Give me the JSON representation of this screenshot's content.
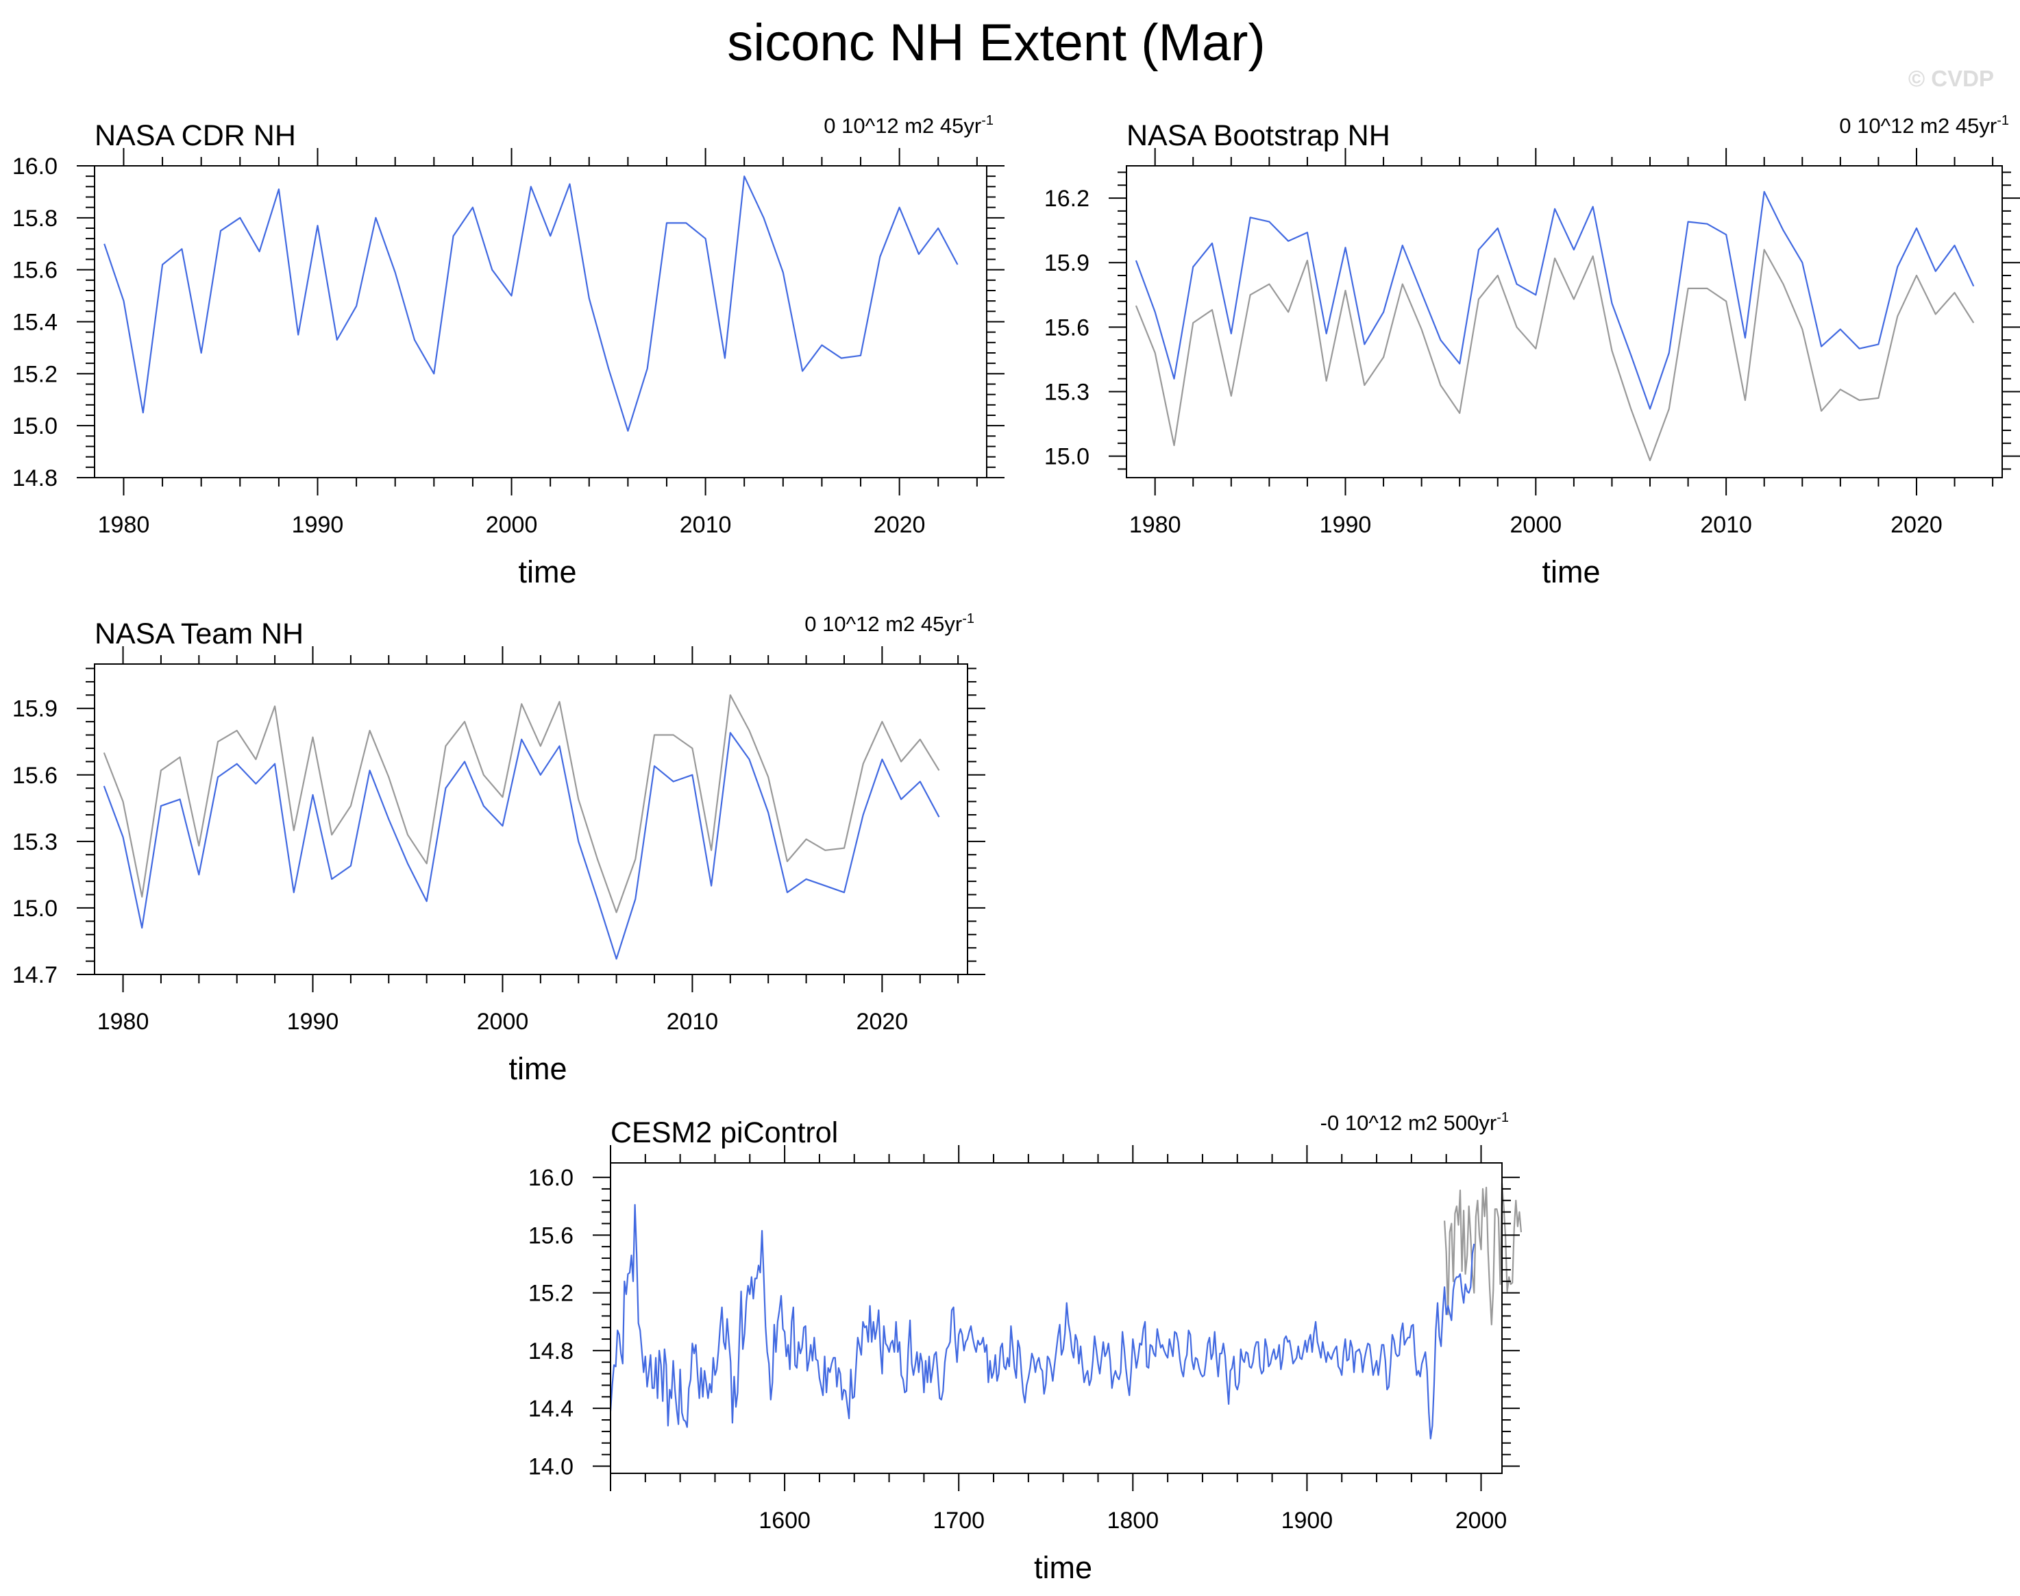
{
  "figure": {
    "title": "siconc NH Extent (Mar)",
    "watermark": "© CVDP"
  },
  "colors": {
    "main": "#4169e1",
    "obs_ref": "#999999",
    "axis": "#000000"
  },
  "chart_data": [
    {
      "type": "line",
      "title": "NASA CDR NH",
      "trend_label": "0 10^12 m2 45yr",
      "trend_sup": "-1",
      "xlabel": "time",
      "ylabel": "",
      "xlim": [
        1978.5,
        2024.5
      ],
      "ylim": [
        14.8,
        16.0
      ],
      "xticks": [
        1980,
        1990,
        2000,
        2010,
        2020
      ],
      "yticks": [
        14.8,
        15.0,
        15.2,
        15.4,
        15.6,
        15.8,
        16.0
      ],
      "ytick_labels": [
        "14.8",
        "15.0",
        "15.2",
        "15.4",
        "15.6",
        "15.8",
        "16.0"
      ],
      "x_start": 1979,
      "series": [
        {
          "role": "main",
          "values": [
            15.7,
            15.48,
            15.05,
            15.62,
            15.68,
            15.28,
            15.75,
            15.8,
            15.67,
            15.91,
            15.35,
            15.77,
            15.33,
            15.46,
            15.8,
            15.59,
            15.33,
            15.2,
            15.73,
            15.84,
            15.6,
            15.5,
            15.92,
            15.73,
            15.93,
            15.49,
            15.22,
            14.98,
            15.22,
            15.78,
            15.78,
            15.72,
            15.26,
            15.96,
            15.8,
            15.59,
            15.21,
            15.31,
            15.26,
            15.27,
            15.65,
            15.84,
            15.66,
            15.76,
            15.62
          ]
        }
      ]
    },
    {
      "type": "line",
      "title": "NASA Bootstrap NH",
      "trend_label": "0 10^12 m2 45yr",
      "trend_sup": "-1",
      "xlabel": "time",
      "ylabel": "",
      "xlim": [
        1978.5,
        2024.5
      ],
      "ylim": [
        14.9,
        16.35
      ],
      "xticks": [
        1980,
        1990,
        2000,
        2010,
        2020
      ],
      "yticks": [
        15.0,
        15.3,
        15.6,
        15.9,
        16.2
      ],
      "ytick_labels": [
        "15.0",
        "15.3",
        "15.6",
        "15.9",
        "16.2"
      ],
      "x_start": 1979,
      "series": [
        {
          "role": "reference",
          "values": [
            15.7,
            15.48,
            15.05,
            15.62,
            15.68,
            15.28,
            15.75,
            15.8,
            15.67,
            15.91,
            15.35,
            15.77,
            15.33,
            15.46,
            15.8,
            15.59,
            15.33,
            15.2,
            15.73,
            15.84,
            15.6,
            15.5,
            15.92,
            15.73,
            15.93,
            15.49,
            15.22,
            14.98,
            15.22,
            15.78,
            15.78,
            15.72,
            15.26,
            15.96,
            15.8,
            15.59,
            15.21,
            15.31,
            15.26,
            15.27,
            15.65,
            15.84,
            15.66,
            15.76,
            15.62
          ]
        },
        {
          "role": "main",
          "values": [
            15.91,
            15.67,
            15.36,
            15.88,
            15.99,
            15.57,
            16.11,
            16.09,
            16.0,
            16.04,
            15.57,
            15.97,
            15.52,
            15.67,
            15.98,
            15.76,
            15.54,
            15.43,
            15.96,
            16.06,
            15.8,
            15.75,
            16.15,
            15.96,
            16.16,
            15.71,
            15.47,
            15.22,
            15.48,
            16.09,
            16.08,
            16.03,
            15.55,
            16.23,
            16.05,
            15.9,
            15.51,
            15.59,
            15.5,
            15.52,
            15.88,
            16.06,
            15.86,
            15.98,
            15.79
          ]
        }
      ]
    },
    {
      "type": "line",
      "title": "NASA Team NH",
      "trend_label": "0 10^12 m2 45yr",
      "trend_sup": "-1",
      "xlabel": "time",
      "ylabel": "",
      "xlim": [
        1978.5,
        2024.5
      ],
      "ylim": [
        14.7,
        16.1
      ],
      "xticks": [
        1980,
        1990,
        2000,
        2010,
        2020
      ],
      "yticks": [
        14.7,
        15.0,
        15.3,
        15.6,
        15.9
      ],
      "ytick_labels": [
        "14.7",
        "15.0",
        "15.3",
        "15.6",
        "15.9"
      ],
      "x_start": 1979,
      "series": [
        {
          "role": "reference",
          "values": [
            15.7,
            15.48,
            15.05,
            15.62,
            15.68,
            15.28,
            15.75,
            15.8,
            15.67,
            15.91,
            15.35,
            15.77,
            15.33,
            15.46,
            15.8,
            15.59,
            15.33,
            15.2,
            15.73,
            15.84,
            15.6,
            15.5,
            15.92,
            15.73,
            15.93,
            15.49,
            15.22,
            14.98,
            15.22,
            15.78,
            15.78,
            15.72,
            15.26,
            15.96,
            15.8,
            15.59,
            15.21,
            15.31,
            15.26,
            15.27,
            15.65,
            15.84,
            15.66,
            15.76,
            15.62
          ]
        },
        {
          "role": "main",
          "values": [
            15.55,
            15.32,
            14.91,
            15.46,
            15.49,
            15.15,
            15.59,
            15.65,
            15.56,
            15.65,
            15.07,
            15.51,
            15.13,
            15.19,
            15.62,
            15.4,
            15.2,
            15.03,
            15.54,
            15.66,
            15.46,
            15.37,
            15.76,
            15.6,
            15.73,
            15.3,
            15.04,
            14.77,
            15.04,
            15.64,
            15.57,
            15.6,
            15.1,
            15.79,
            15.67,
            15.43,
            15.07,
            15.13,
            15.1,
            15.07,
            15.42,
            15.67,
            15.49,
            15.57,
            15.41
          ]
        }
      ]
    },
    {
      "type": "line",
      "title": "CESM2 piControl",
      "trend_label": "-0 10^12 m2 500yr",
      "trend_sup": "-1",
      "xlabel": "time",
      "ylabel": "",
      "xlim": [
        1500,
        2012
      ],
      "ylim": [
        13.95,
        16.1
      ],
      "xticks": [
        1600,
        1700,
        1800,
        1900,
        2000
      ],
      "yticks": [
        14.0,
        14.4,
        14.8,
        15.2,
        15.6,
        16.0
      ],
      "ytick_labels": [
        "14.0",
        "14.4",
        "14.8",
        "15.2",
        "15.6",
        "16.0"
      ],
      "x_start": 1500,
      "series": [
        {
          "role": "reference",
          "x_start": 1979,
          "values": [
            15.7,
            15.48,
            15.05,
            15.62,
            15.68,
            15.28,
            15.75,
            15.8,
            15.67,
            15.91,
            15.35,
            15.77,
            15.33,
            15.46,
            15.8,
            15.59,
            15.33,
            15.2,
            15.73,
            15.84,
            15.6,
            15.5,
            15.92,
            15.73,
            15.93,
            15.49,
            15.22,
            14.98,
            15.22,
            15.78,
            15.78,
            15.72,
            15.26,
            15.96,
            15.8,
            15.59,
            15.21,
            15.31,
            15.26,
            15.27,
            15.65,
            15.84,
            15.66,
            15.76,
            15.62
          ]
        },
        {
          "role": "main",
          "x_start": 1500,
          "values": [
            14.38,
            14.56,
            14.7,
            14.69,
            14.94,
            14.91,
            14.78,
            14.71,
            15.28,
            15.19,
            15.33,
            15.34,
            15.46,
            15.28,
            15.81,
            15.47,
            14.99,
            14.94,
            14.8,
            14.65,
            14.76,
            14.55,
            14.65,
            14.77,
            14.54,
            14.54,
            14.75,
            14.47,
            14.8,
            14.7,
            14.45,
            14.81,
            14.7,
            14.28,
            14.53,
            14.47,
            14.73,
            14.53,
            14.39,
            14.29,
            14.67,
            14.37,
            14.32,
            14.31,
            14.27,
            14.54,
            14.6,
            14.85,
            14.78,
            14.84,
            14.63,
            14.47,
            14.68,
            14.48,
            14.66,
            14.57,
            14.47,
            14.57,
            14.51,
            14.75,
            14.63,
            14.67,
            14.8,
            14.97,
            15.1,
            14.86,
            14.81,
            15.02,
            14.86,
            14.72,
            14.3,
            14.62,
            14.41,
            14.51,
            14.88,
            15.21,
            14.81,
            14.92,
            15.14,
            15.25,
            15.19,
            15.31,
            15.16,
            15.3,
            15.3,
            15.39,
            15.34,
            15.63,
            15.32,
            14.97,
            14.79,
            14.71,
            14.46,
            14.58,
            14.98,
            14.79,
            15.0,
            15.08,
            15.18,
            14.95,
            14.93,
            14.76,
            14.84,
            14.67,
            15.0,
            15.1,
            14.7,
            14.68,
            14.86,
            14.78,
            14.82,
            14.96,
            14.97,
            14.66,
            14.73,
            14.84,
            14.73,
            14.89,
            14.74,
            14.73,
            14.61,
            14.55,
            14.49,
            14.76,
            14.51,
            14.68,
            14.65,
            14.71,
            14.75,
            14.75,
            14.55,
            14.68,
            14.64,
            14.46,
            14.53,
            14.52,
            14.42,
            14.33,
            14.67,
            14.47,
            14.48,
            14.69,
            14.89,
            14.83,
            14.77,
            15.0,
            14.96,
            14.97,
            14.86,
            15.11,
            14.86,
            15.0,
            14.88,
            14.96,
            15.08,
            14.81,
            14.64,
            14.97,
            14.85,
            14.83,
            14.79,
            14.85,
            14.87,
            14.79,
            15.0,
            14.79,
            14.86,
            14.63,
            14.6,
            14.51,
            14.52,
            14.81,
            15.01,
            14.71,
            14.63,
            14.7,
            14.79,
            14.65,
            14.78,
            14.72,
            14.51,
            14.73,
            14.58,
            14.76,
            14.58,
            14.67,
            14.77,
            14.79,
            14.64,
            14.47,
            14.46,
            14.52,
            14.72,
            14.81,
            14.83,
            14.86,
            15.08,
            15.1,
            14.87,
            14.72,
            14.91,
            14.95,
            14.91,
            14.8,
            14.86,
            14.88,
            14.93,
            14.97,
            14.89,
            14.83,
            14.79,
            14.87,
            14.84,
            14.85,
            14.89,
            14.79,
            14.84,
            14.58,
            14.73,
            14.61,
            14.65,
            14.77,
            14.59,
            14.64,
            14.82,
            14.85,
            14.69,
            14.67,
            14.75,
            14.69,
            14.97,
            14.83,
            14.68,
            14.61,
            14.87,
            14.82,
            14.65,
            14.51,
            14.44,
            14.56,
            14.61,
            14.68,
            14.78,
            14.74,
            14.65,
            14.72,
            14.75,
            14.68,
            14.66,
            14.5,
            14.57,
            14.76,
            14.74,
            14.68,
            14.59,
            14.7,
            14.8,
            14.9,
            14.98,
            14.77,
            14.81,
            14.92,
            15.13,
            14.99,
            14.92,
            14.8,
            14.75,
            14.91,
            14.87,
            14.71,
            14.83,
            14.7,
            14.58,
            14.63,
            14.66,
            14.56,
            14.6,
            14.73,
            14.9,
            14.81,
            14.71,
            14.64,
            14.75,
            14.86,
            14.76,
            14.79,
            14.85,
            14.73,
            14.54,
            14.62,
            14.66,
            14.62,
            14.6,
            14.65,
            14.93,
            14.82,
            14.68,
            14.57,
            14.49,
            14.66,
            14.88,
            14.79,
            14.68,
            14.75,
            14.85,
            14.84,
            14.95,
            15.0,
            14.69,
            14.68,
            14.84,
            14.83,
            14.78,
            14.76,
            14.95,
            14.88,
            14.82,
            14.84,
            14.8,
            14.77,
            14.75,
            14.88,
            14.82,
            14.76,
            14.93,
            14.92,
            14.86,
            14.74,
            14.66,
            14.62,
            14.73,
            14.77,
            14.94,
            14.91,
            14.73,
            14.67,
            14.75,
            14.74,
            14.68,
            14.64,
            14.62,
            14.63,
            14.73,
            14.85,
            14.89,
            14.74,
            14.78,
            14.93,
            14.75,
            14.62,
            14.78,
            14.78,
            14.85,
            14.76,
            14.59,
            14.43,
            14.66,
            14.68,
            14.76,
            14.56,
            14.53,
            14.58,
            14.81,
            14.74,
            14.72,
            14.79,
            14.78,
            14.69,
            14.68,
            14.72,
            14.82,
            14.86,
            14.86,
            14.69,
            14.64,
            14.66,
            14.88,
            14.82,
            14.69,
            14.71,
            14.77,
            14.81,
            14.74,
            14.76,
            14.84,
            14.67,
            14.74,
            14.88,
            14.9,
            14.86,
            14.87,
            14.8,
            14.71,
            14.73,
            14.75,
            14.83,
            14.75,
            14.74,
            14.8,
            14.87,
            14.79,
            14.87,
            14.91,
            14.79,
            14.92,
            15.0,
            14.86,
            14.81,
            14.75,
            14.86,
            14.79,
            14.72,
            14.79,
            14.76,
            14.74,
            14.78,
            14.81,
            14.83,
            14.69,
            14.67,
            14.63,
            14.79,
            14.88,
            14.73,
            14.74,
            14.87,
            14.82,
            14.65,
            14.79,
            14.8,
            14.81,
            14.77,
            14.65,
            14.74,
            14.8,
            14.85,
            14.84,
            14.74,
            14.63,
            14.68,
            14.73,
            14.63,
            14.73,
            14.84,
            14.84,
            14.73,
            14.53,
            14.55,
            14.71,
            14.91,
            14.87,
            14.78,
            14.76,
            14.77,
            14.93,
            14.99,
            14.84,
            14.87,
            14.89,
            14.89,
            14.97,
            14.98,
            14.77,
            14.63,
            14.66,
            14.62,
            14.71,
            14.75,
            14.79,
            14.66,
            14.37,
            14.19,
            14.28,
            14.56,
            14.94,
            15.13,
            14.9,
            14.83,
            15.07,
            15.24,
            15.05,
            15.11,
            15.06,
            15.01,
            15.22,
            15.29,
            15.31,
            15.31,
            15.33,
            15.21,
            15.13,
            15.26,
            15.21,
            15.2,
            15.24,
            15.47,
            15.54
          ]
        }
      ]
    }
  ]
}
